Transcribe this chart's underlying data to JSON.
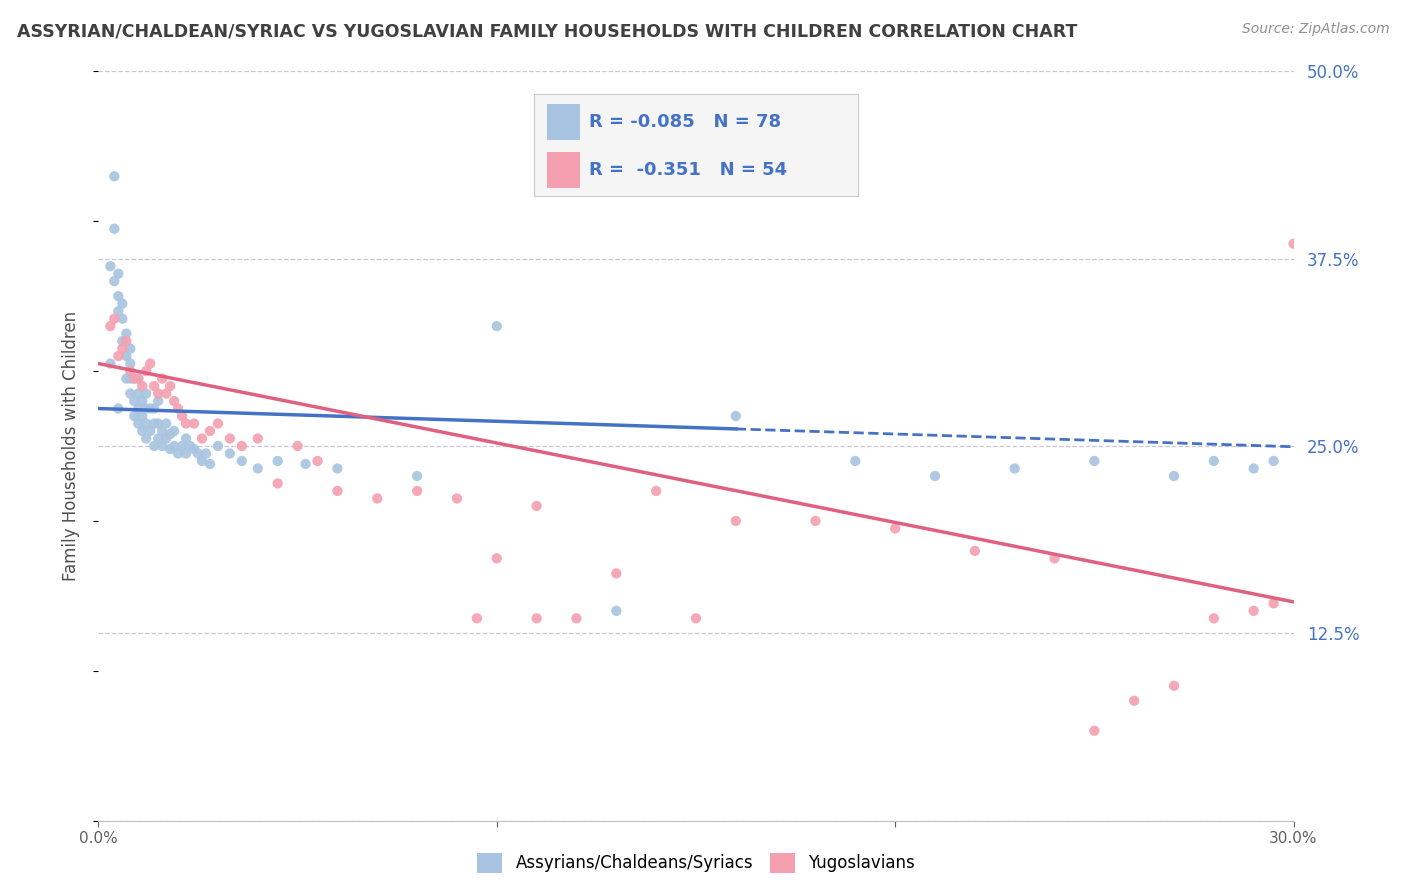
{
  "title": "ASSYRIAN/CHALDEAN/SYRIAC VS YUGOSLAVIAN FAMILY HOUSEHOLDS WITH CHILDREN CORRELATION CHART",
  "source": "Source: ZipAtlas.com",
  "ylabel": "Family Households with Children",
  "ytick_labels": [
    "",
    "12.5%",
    "25.0%",
    "37.5%",
    "50.0%"
  ],
  "ytick_vals": [
    0.0,
    0.125,
    0.25,
    0.375,
    0.5
  ],
  "xmin": 0.0,
  "xmax": 0.3,
  "ymin": 0.0,
  "ymax": 0.5,
  "blue_R": -0.085,
  "blue_N": 78,
  "pink_R": -0.351,
  "pink_N": 54,
  "blue_color": "#a8c4e0",
  "pink_color": "#f4a0b0",
  "blue_line_color": "#4472c4",
  "pink_line_color": "#e06080",
  "blue_line_solid_end": 0.16,
  "legend_text_color": "#4472c4",
  "title_color": "#404040",
  "source_color": "#909090",
  "grid_color": "#c8c8d8",
  "blue_intercept": 0.275,
  "blue_slope": -0.085,
  "pink_intercept": 0.305,
  "pink_slope": -0.53,
  "blue_scatter_x": [
    0.003,
    0.003,
    0.004,
    0.004,
    0.004,
    0.005,
    0.005,
    0.005,
    0.005,
    0.006,
    0.006,
    0.006,
    0.007,
    0.007,
    0.007,
    0.008,
    0.008,
    0.008,
    0.008,
    0.009,
    0.009,
    0.009,
    0.01,
    0.01,
    0.01,
    0.01,
    0.011,
    0.011,
    0.011,
    0.012,
    0.012,
    0.012,
    0.012,
    0.013,
    0.013,
    0.014,
    0.014,
    0.014,
    0.015,
    0.015,
    0.015,
    0.016,
    0.016,
    0.017,
    0.017,
    0.018,
    0.018,
    0.019,
    0.019,
    0.02,
    0.021,
    0.022,
    0.022,
    0.023,
    0.024,
    0.025,
    0.026,
    0.027,
    0.028,
    0.03,
    0.033,
    0.036,
    0.04,
    0.045,
    0.052,
    0.06,
    0.08,
    0.1,
    0.13,
    0.16,
    0.19,
    0.21,
    0.23,
    0.25,
    0.27,
    0.28,
    0.29,
    0.295
  ],
  "blue_scatter_y": [
    0.305,
    0.37,
    0.36,
    0.395,
    0.43,
    0.34,
    0.35,
    0.365,
    0.275,
    0.32,
    0.335,
    0.345,
    0.295,
    0.31,
    0.325,
    0.285,
    0.295,
    0.305,
    0.315,
    0.27,
    0.28,
    0.295,
    0.265,
    0.275,
    0.285,
    0.295,
    0.26,
    0.27,
    0.28,
    0.255,
    0.265,
    0.275,
    0.285,
    0.26,
    0.275,
    0.25,
    0.265,
    0.275,
    0.255,
    0.265,
    0.28,
    0.25,
    0.26,
    0.255,
    0.265,
    0.248,
    0.258,
    0.25,
    0.26,
    0.245,
    0.25,
    0.245,
    0.255,
    0.25,
    0.248,
    0.245,
    0.24,
    0.245,
    0.238,
    0.25,
    0.245,
    0.24,
    0.235,
    0.24,
    0.238,
    0.235,
    0.23,
    0.33,
    0.14,
    0.27,
    0.24,
    0.23,
    0.235,
    0.24,
    0.23,
    0.24,
    0.235,
    0.24
  ],
  "pink_scatter_x": [
    0.003,
    0.004,
    0.005,
    0.006,
    0.007,
    0.008,
    0.009,
    0.01,
    0.011,
    0.012,
    0.013,
    0.014,
    0.015,
    0.016,
    0.017,
    0.018,
    0.019,
    0.02,
    0.021,
    0.022,
    0.024,
    0.026,
    0.028,
    0.03,
    0.033,
    0.036,
    0.04,
    0.045,
    0.05,
    0.055,
    0.06,
    0.07,
    0.08,
    0.09,
    0.1,
    0.11,
    0.12,
    0.14,
    0.16,
    0.18,
    0.2,
    0.22,
    0.24,
    0.25,
    0.26,
    0.27,
    0.28,
    0.29,
    0.295,
    0.3,
    0.15,
    0.13,
    0.11,
    0.095
  ],
  "pink_scatter_y": [
    0.33,
    0.335,
    0.31,
    0.315,
    0.32,
    0.3,
    0.295,
    0.295,
    0.29,
    0.3,
    0.305,
    0.29,
    0.285,
    0.295,
    0.285,
    0.29,
    0.28,
    0.275,
    0.27,
    0.265,
    0.265,
    0.255,
    0.26,
    0.265,
    0.255,
    0.25,
    0.255,
    0.225,
    0.25,
    0.24,
    0.22,
    0.215,
    0.22,
    0.215,
    0.175,
    0.21,
    0.135,
    0.22,
    0.2,
    0.2,
    0.195,
    0.18,
    0.175,
    0.06,
    0.08,
    0.09,
    0.135,
    0.14,
    0.145,
    0.385,
    0.135,
    0.165,
    0.135,
    0.135
  ]
}
